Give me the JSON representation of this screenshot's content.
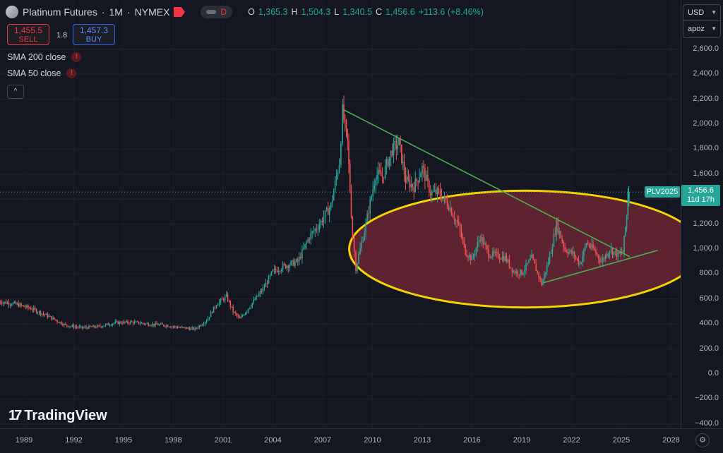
{
  "header": {
    "symbol": "Platinum Futures",
    "interval": "1M",
    "exchange": "NYMEX",
    "dot": "·",
    "d_label": "D",
    "ohlc": {
      "o_label": "O",
      "o_val": "1,365.3",
      "h_label": "H",
      "h_val": "1,504.3",
      "l_label": "L",
      "l_val": "1,340.5",
      "c_label": "C",
      "c_val": "1,456.6",
      "change": "+113.6 (+8.46%)"
    }
  },
  "trade": {
    "sell_price": "1,455.5",
    "sell_label": "SELL",
    "spread": "1.8",
    "buy_price": "1,457.3",
    "buy_label": "BUY"
  },
  "indicators": [
    {
      "label": "SMA 200 close",
      "warn": "!"
    },
    {
      "label": "SMA 50 close",
      "warn": "!"
    }
  ],
  "collapse_icon": "^",
  "currency": {
    "unit": "USD",
    "scale": "apoz"
  },
  "price_tag": {
    "name": "PLV2025",
    "price": "1,456.6",
    "countdown": "11d 17h"
  },
  "logo": {
    "mark": "17",
    "text": "TradingView"
  },
  "settings_icon": "⚙",
  "colors": {
    "up": "#26a69a",
    "down": "#ef5350",
    "trendline": "#4caf50",
    "ellipse": "#f5d400",
    "ellipse_fill": "#6b2632"
  },
  "chart_data": {
    "type": "candlestick",
    "y_ticks": [
      "2,600.0",
      "2,400.0",
      "2,200.0",
      "2,000.0",
      "1,800.0",
      "1,600.0",
      "1,400.0",
      "1,200.0",
      "1,000.0",
      "800.0",
      "600.0",
      "400.0",
      "200.0",
      "0.0",
      "−200.0",
      "−400.0"
    ],
    "x_ticks": [
      "1989",
      "1992",
      "1995",
      "1998",
      "2001",
      "2004",
      "2007",
      "2010",
      "2013",
      "2016",
      "2019",
      "2022",
      "2025",
      "2028"
    ],
    "ylim": [
      -400,
      2700
    ],
    "last_price": 1456.6,
    "series": [
      [
        1987.5,
        580
      ],
      [
        1988.5,
        560
      ],
      [
        1989.5,
        520
      ],
      [
        1990.5,
        460
      ],
      [
        1991.5,
        390
      ],
      [
        1992.5,
        370
      ],
      [
        1993.5,
        380
      ],
      [
        1994.5,
        410
      ],
      [
        1995.5,
        415
      ],
      [
        1996.5,
        400
      ],
      [
        1997.5,
        390
      ],
      [
        1998.5,
        370
      ],
      [
        1999.3,
        360
      ],
      [
        2000.0,
        430
      ],
      [
        2000.6,
        560
      ],
      [
        2001.2,
        620
      ],
      [
        2001.6,
        500
      ],
      [
        2002.0,
        440
      ],
      [
        2002.6,
        540
      ],
      [
        2003.4,
        680
      ],
      [
        2004.0,
        820
      ],
      [
        2004.6,
        860
      ],
      [
        2005.5,
        900
      ],
      [
        2006.2,
        1100
      ],
      [
        2006.8,
        1200
      ],
      [
        2007.5,
        1350
      ],
      [
        2008.0,
        1700
      ],
      [
        2008.2,
        2100
      ],
      [
        2008.5,
        1850
      ],
      [
        2008.8,
        1100
      ],
      [
        2009.0,
        850
      ],
      [
        2009.6,
        1200
      ],
      [
        2010.2,
        1600
      ],
      [
        2010.6,
        1580
      ],
      [
        2011.2,
        1800
      ],
      [
        2011.6,
        1850
      ],
      [
        2012.0,
        1550
      ],
      [
        2012.5,
        1500
      ],
      [
        2013.0,
        1650
      ],
      [
        2013.5,
        1450
      ],
      [
        2014.0,
        1450
      ],
      [
        2014.6,
        1350
      ],
      [
        2015.2,
        1180
      ],
      [
        2015.6,
        980
      ],
      [
        2016.0,
        920
      ],
      [
        2016.5,
        1100
      ],
      [
        2017.0,
        960
      ],
      [
        2017.5,
        950
      ],
      [
        2018.0,
        930
      ],
      [
        2018.5,
        820
      ],
      [
        2019.0,
        810
      ],
      [
        2019.6,
        930
      ],
      [
        2020.2,
        720
      ],
      [
        2020.6,
        900
      ],
      [
        2021.1,
        1200
      ],
      [
        2021.6,
        1000
      ],
      [
        2022.1,
        960
      ],
      [
        2022.5,
        880
      ],
      [
        2022.9,
        1050
      ],
      [
        2023.3,
        1000
      ],
      [
        2023.8,
        900
      ],
      [
        2024.3,
        1000
      ],
      [
        2024.8,
        950
      ],
      [
        2025.1,
        980
      ],
      [
        2025.4,
        1365
      ],
      [
        2025.5,
        1456.6
      ]
    ],
    "trendlines": [
      {
        "from": [
          2008.2,
          2120
        ],
        "to": [
          2025.5,
          940
        ]
      },
      {
        "from": [
          2020.3,
          730
        ],
        "to": [
          2027.2,
          990
        ]
      }
    ],
    "ellipse": {
      "cx_year": 2019.2,
      "cy_price": 1000,
      "rx_years": 10.6,
      "ry_price": 170
    }
  }
}
